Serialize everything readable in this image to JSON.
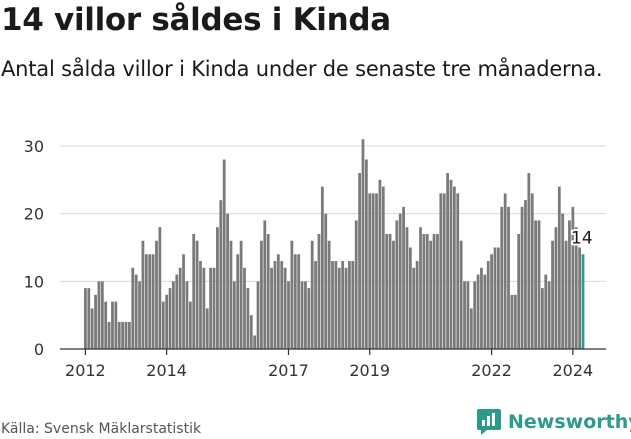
{
  "title": "14 villor såldes i Kinda",
  "subtitle": "Antal sålda villor i Kinda under de senaste tre månaderna.",
  "source": "Källa: Svensk Mäklarstatistik",
  "brand": "Newsworthy",
  "colors": {
    "bar": "#7a7a7a",
    "highlight": "#2c9a8c",
    "axis": "#333333",
    "grid": "#d9d9d9"
  },
  "chart_data": {
    "type": "bar",
    "title": "14 villor såldes i Kinda",
    "xlabel": "",
    "ylabel": "",
    "ylim": [
      0,
      31
    ],
    "yticks": [
      0,
      10,
      20,
      30
    ],
    "start": "2012-01",
    "x_tick_labels": [
      "2012",
      "2014",
      "2017",
      "2019",
      "2022",
      "2024"
    ],
    "x_tick_positions": [
      0,
      24,
      60,
      84,
      120,
      144
    ],
    "highlight_label": "14",
    "values": [
      9,
      9,
      6,
      8,
      10,
      10,
      7,
      4,
      7,
      7,
      4,
      4,
      4,
      4,
      12,
      11,
      10,
      16,
      14,
      14,
      14,
      16,
      18,
      7,
      8,
      9,
      10,
      11,
      12,
      14,
      10,
      7,
      17,
      16,
      13,
      12,
      6,
      12,
      12,
      18,
      22,
      28,
      20,
      16,
      10,
      14,
      16,
      12,
      9,
      5,
      2,
      10,
      16,
      19,
      17,
      12,
      13,
      14,
      13,
      12,
      10,
      16,
      14,
      14,
      10,
      10,
      9,
      16,
      13,
      17,
      24,
      20,
      16,
      13,
      13,
      12,
      13,
      12,
      13,
      13,
      19,
      26,
      31,
      28,
      23,
      23,
      23,
      25,
      24,
      17,
      17,
      16,
      19,
      20,
      21,
      18,
      15,
      12,
      13,
      18,
      17,
      17,
      16,
      17,
      17,
      23,
      23,
      26,
      25,
      24,
      23,
      16,
      10,
      10,
      6,
      10,
      11,
      12,
      11,
      13,
      14,
      15,
      15,
      21,
      23,
      21,
      8,
      8,
      17,
      21,
      22,
      26,
      23,
      19,
      19,
      9,
      11,
      10,
      16,
      18,
      24,
      20,
      16,
      19,
      21,
      18,
      15,
      14
    ]
  }
}
